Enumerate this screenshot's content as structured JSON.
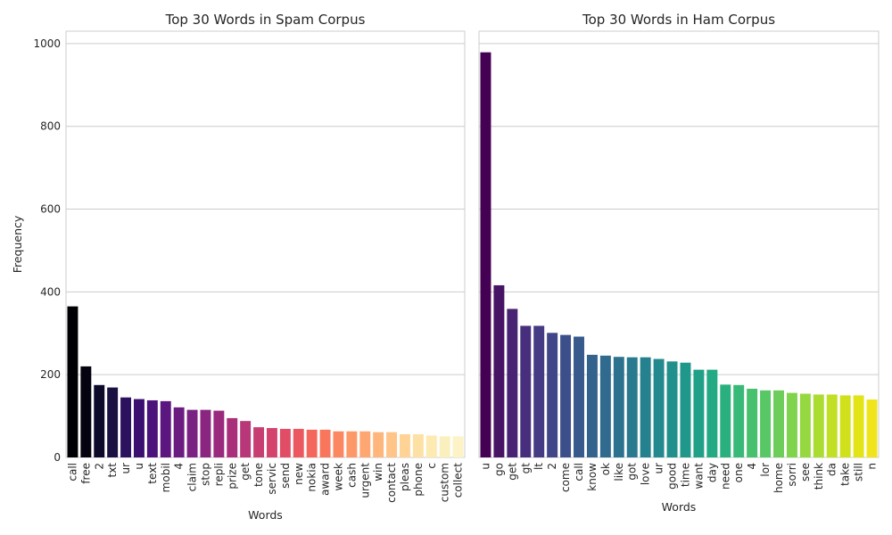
{
  "chart_data": [
    {
      "type": "bar",
      "title": "Top 30 Words in Spam Corpus",
      "xlabel": "Words",
      "ylabel": "Frequency",
      "ylim": [
        0,
        1030
      ],
      "yticks": [
        0,
        200,
        400,
        600,
        800,
        1000
      ],
      "grid": true,
      "palette": "magma",
      "categories": [
        "call",
        "free",
        "2",
        "txt",
        "ur",
        "u",
        "text",
        "mobil",
        "4",
        "claim",
        "stop",
        "repli",
        "prize",
        "get",
        "tone",
        "servic",
        "send",
        "new",
        "nokia",
        "award",
        "week",
        "cash",
        "urgent",
        "win",
        "contact",
        "pleas",
        "phone",
        "c",
        "custom",
        "collect"
      ],
      "values": [
        365,
        220,
        175,
        169,
        145,
        141,
        138,
        136,
        121,
        115,
        115,
        113,
        95,
        88,
        73,
        71,
        69,
        69,
        67,
        67,
        63,
        63,
        63,
        61,
        61,
        56,
        56,
        53,
        51,
        51
      ],
      "colors": [
        "#000004",
        "#04030f",
        "#0d0a29",
        "#1a1042",
        "#2b115e",
        "#3b0f70",
        "#4c127b",
        "#5c167f",
        "#6a1c81",
        "#7a2282",
        "#8a2680",
        "#992a7e",
        "#a92f7a",
        "#b73779",
        "#c83e72",
        "#d4436e",
        "#e14d66",
        "#ec5860",
        "#f3675c",
        "#f8765c",
        "#fb8861",
        "#fd9869",
        "#fea772",
        "#feb67c",
        "#fec488",
        "#fed395",
        "#fde0a3",
        "#fceab1",
        "#fbf0bd",
        "#fcf3c6"
      ]
    },
    {
      "type": "bar",
      "title": "Top 30 Words in Ham Corpus",
      "xlabel": "Words",
      "ylim": [
        0,
        1030
      ],
      "grid": true,
      "palette": "viridis",
      "categories": [
        "u",
        "go",
        "get",
        "gt",
        "lt",
        "2",
        "come",
        "call",
        "know",
        "ok",
        "like",
        "got",
        "love",
        "ur",
        "good",
        "time",
        "want",
        "day",
        "need",
        "one",
        "4",
        "lor",
        "home",
        "sorri",
        "see",
        "think",
        "da",
        "take",
        "still",
        "n"
      ],
      "values": [
        979,
        416,
        359,
        318,
        318,
        301,
        296,
        292,
        248,
        246,
        243,
        242,
        242,
        238,
        232,
        229,
        212,
        212,
        176,
        175,
        166,
        162,
        162,
        156,
        154,
        152,
        152,
        150,
        150,
        140
      ],
      "colors": [
        "#440154",
        "#471365",
        "#482374",
        "#472f7d",
        "#443b84",
        "#414688",
        "#3d4f8a",
        "#38598c",
        "#33628d",
        "#306a8e",
        "#2c728e",
        "#297a8e",
        "#26818e",
        "#23898e",
        "#21908d",
        "#1f988b",
        "#20a087",
        "#23a983",
        "#2ab07f",
        "#38b977",
        "#48c16e",
        "#58c765",
        "#6ccd5a",
        "#80d34c",
        "#96d83f",
        "#aadc32",
        "#c0df25",
        "#d0e11c",
        "#e2e418",
        "#f0e51c"
      ]
    }
  ]
}
